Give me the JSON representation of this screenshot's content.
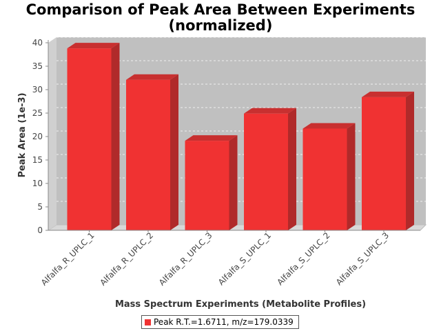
{
  "chart_data": {
    "type": "bar",
    "title": "Comparison of Peak Area Between Experiments",
    "subtitle": "(normalized)",
    "xlabel": "Mass Spectrum Experiments (Metabolite Profiles)",
    "ylabel": "Peak Area (1e-3)",
    "ylim": [
      0,
      40
    ],
    "yticks": [
      "0",
      "5",
      "10",
      "15",
      "20",
      "25",
      "30",
      "35",
      "40"
    ],
    "categories": [
      "Alfalfa_R_UPLC_1",
      "Alfalfa_R_UPLC_2",
      "Alfalfa_R_UPLC_3",
      "Alfalfa_S_UPLC_1",
      "Alfalfa_S_UPLC_2",
      "Alfalfa_S_UPLC_3"
    ],
    "series": [
      {
        "name": "Peak R.T.=1.6711, m/z=179.0339",
        "values": [
          38.8,
          32.1,
          19.1,
          24.9,
          21.7,
          28.4
        ]
      }
    ],
    "grid": true,
    "legend_position": "bottom-center",
    "colors": {
      "bar": "#f03232",
      "plot_background": "#c0c0c0"
    }
  }
}
